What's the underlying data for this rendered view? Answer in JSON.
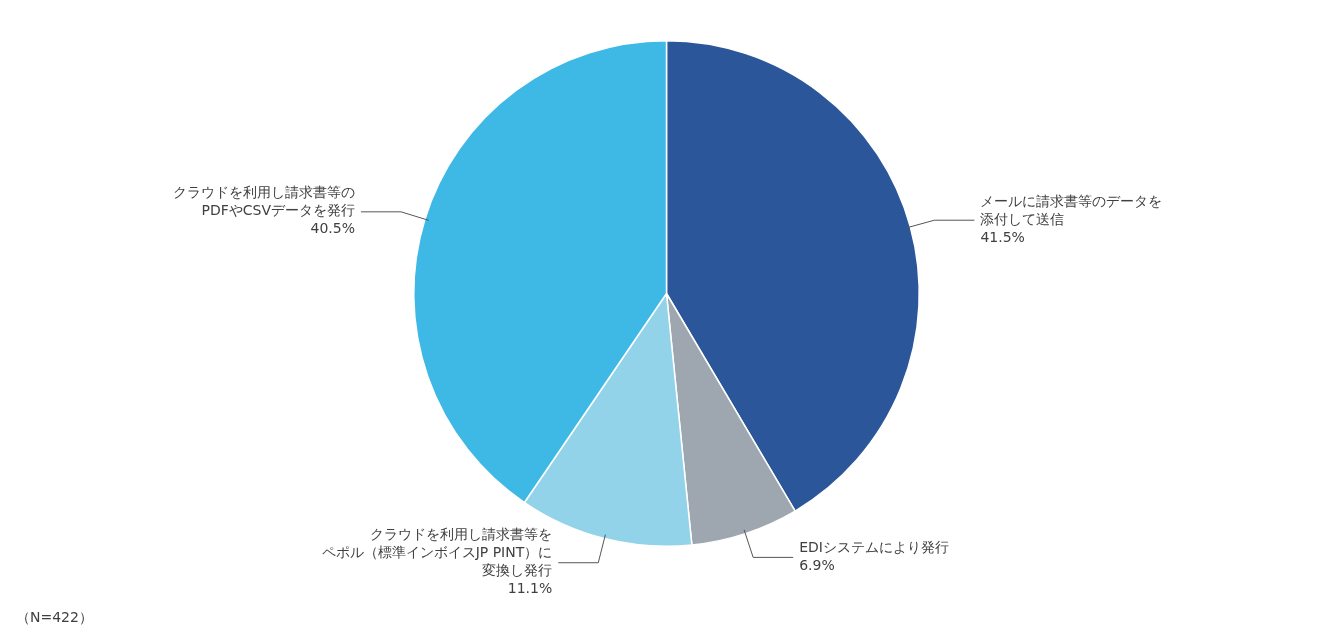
{
  "chart_data": {
    "type": "pie",
    "categories": [
      "メールに請求書等のデータを\n添付して送信",
      "EDIシステムにより発行",
      "クラウドを利用し請求書等を\nペポル（標準インボイスJP PINT）に\n変換し発行",
      "クラウドを利用し請求書等の\nPDFやCSVデータを発行"
    ],
    "values": [
      41.5,
      6.9,
      11.1,
      40.5
    ],
    "value_labels": [
      "41.5%",
      "6.9%",
      "11.1%",
      "40.5%"
    ],
    "colors": [
      "#2b579a",
      "#9ea7b0",
      "#92d3ea",
      "#3eb8e5"
    ],
    "data_labels": true,
    "legend": false,
    "annotations": [
      "（N=422）"
    ]
  }
}
